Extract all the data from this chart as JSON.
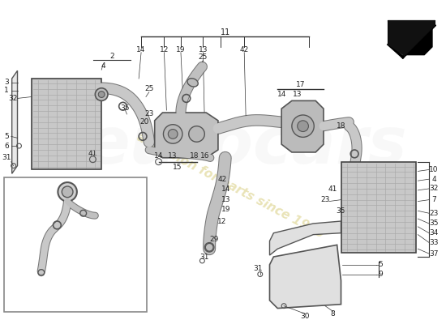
{
  "bg_color": "#ffffff",
  "watermark_text": "a passion for parts since 1985",
  "watermark_color": "#d4c870",
  "watermark_alpha": 0.5,
  "line_color": "#333333",
  "part_edge_color": "#444444",
  "label_color": "#222222",
  "label_fontsize": 6.5,
  "euro_logo_color": "#cccccc",
  "euro_logo_alpha": 0.15
}
